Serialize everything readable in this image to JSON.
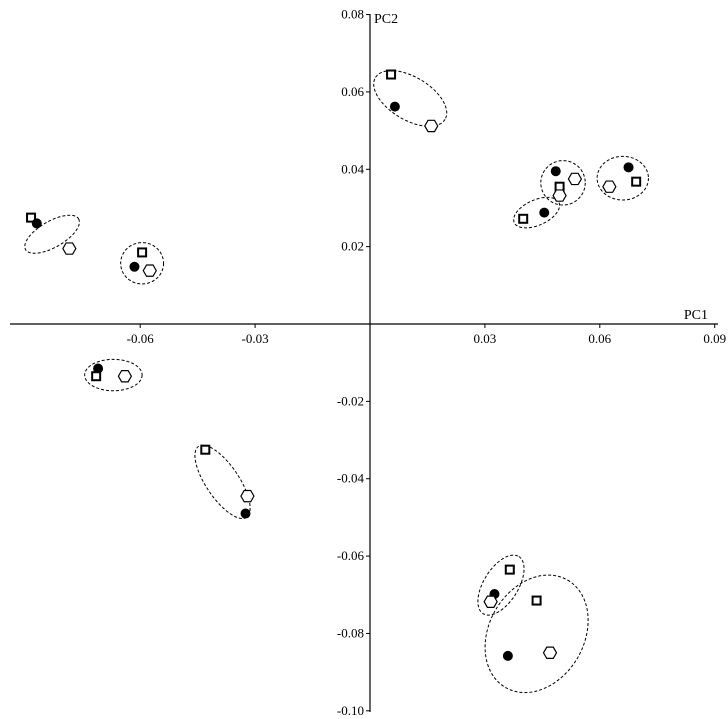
{
  "chart_data": {
    "type": "scatter",
    "title": "",
    "xlabel": "PC1",
    "ylabel": "PC2",
    "xlim": [
      -0.09,
      0.09
    ],
    "ylim": [
      -0.1,
      0.08
    ],
    "x_ticks": [
      {
        "value": -0.06,
        "label": "-0.06"
      },
      {
        "value": -0.03,
        "label": "-0.03"
      },
      {
        "value": 0.03,
        "label": "0.03"
      },
      {
        "value": 0.06,
        "label": "0.06"
      },
      {
        "value": 0.09,
        "label": "0.09"
      }
    ],
    "y_ticks": [
      {
        "value": 0.08,
        "label": "0.08"
      },
      {
        "value": 0.06,
        "label": "0.06"
      },
      {
        "value": 0.04,
        "label": "0.04"
      },
      {
        "value": 0.02,
        "label": "0.02"
      },
      {
        "value": -0.02,
        "label": "-0.02"
      },
      {
        "value": -0.04,
        "label": "-0.04"
      },
      {
        "value": -0.06,
        "label": "-0.06"
      },
      {
        "value": -0.08,
        "label": "-0.08"
      },
      {
        "value": -0.1,
        "label": "-0.10"
      }
    ],
    "grid": false,
    "legend": "none",
    "marker_styles": {
      "dot": {
        "shape": "filled-circle",
        "color": "#000000"
      },
      "square": {
        "shape": "open-square",
        "color": "#000000"
      },
      "hexagon": {
        "shape": "open-hexagon",
        "color": "#000000"
      }
    },
    "ellipse_style": {
      "stroke": "#000000",
      "dash": "dashed"
    },
    "groups": [
      {
        "id": "g1",
        "points": [
          {
            "marker": "square",
            "x": -0.0885,
            "y": 0.0275
          },
          {
            "marker": "dot",
            "x": -0.087,
            "y": 0.026
          },
          {
            "marker": "hexagon",
            "x": -0.0785,
            "y": 0.0195
          }
        ],
        "ellipse": {
          "cx": -0.083,
          "cy": 0.0232,
          "rx": 0.008,
          "ry": 0.0034,
          "angle_deg": -30
        }
      },
      {
        "id": "g2",
        "points": [
          {
            "marker": "square",
            "x": -0.0595,
            "y": 0.0185
          },
          {
            "marker": "dot",
            "x": -0.0615,
            "y": 0.0148
          },
          {
            "marker": "hexagon",
            "x": -0.0575,
            "y": 0.0138
          }
        ],
        "ellipse": {
          "cx": -0.0595,
          "cy": 0.0157,
          "rx": 0.0056,
          "ry": 0.0054,
          "angle_deg": 0
        }
      },
      {
        "id": "g3",
        "points": [
          {
            "marker": "square",
            "x": 0.0055,
            "y": 0.0645
          },
          {
            "marker": "dot",
            "x": 0.0065,
            "y": 0.0562
          },
          {
            "marker": "hexagon",
            "x": 0.016,
            "y": 0.0512
          }
        ],
        "ellipse": {
          "cx": 0.0105,
          "cy": 0.0583,
          "rx": 0.0106,
          "ry": 0.0056,
          "angle_deg": 31
        }
      },
      {
        "id": "g4",
        "points": [
          {
            "marker": "dot",
            "x": 0.0485,
            "y": 0.0395
          },
          {
            "marker": "square",
            "x": 0.0495,
            "y": 0.0355
          },
          {
            "marker": "hexagon",
            "x": 0.0495,
            "y": 0.0332
          },
          {
            "marker": "hexagon",
            "x": 0.0535,
            "y": 0.0375
          }
        ],
        "ellipse": {
          "cx": 0.0504,
          "cy": 0.0365,
          "rx": 0.0058,
          "ry": 0.0058,
          "angle_deg": 0
        }
      },
      {
        "id": "g5",
        "points": [
          {
            "marker": "square",
            "x": 0.04,
            "y": 0.0272
          },
          {
            "marker": "dot",
            "x": 0.0455,
            "y": 0.0288
          }
        ],
        "ellipse": {
          "cx": 0.0435,
          "cy": 0.0288,
          "rx": 0.0064,
          "ry": 0.0033,
          "angle_deg": -24
        }
      },
      {
        "id": "g6",
        "points": [
          {
            "marker": "dot",
            "x": 0.0675,
            "y": 0.0405
          },
          {
            "marker": "hexagon",
            "x": 0.0625,
            "y": 0.0355
          },
          {
            "marker": "square",
            "x": 0.0695,
            "y": 0.0368
          }
        ],
        "ellipse": {
          "cx": 0.066,
          "cy": 0.0377,
          "rx": 0.0067,
          "ry": 0.0057,
          "angle_deg": 0
        }
      },
      {
        "id": "g7",
        "points": [
          {
            "marker": "dot",
            "x": -0.071,
            "y": -0.0115
          },
          {
            "marker": "square",
            "x": -0.0715,
            "y": -0.0135
          },
          {
            "marker": "hexagon",
            "x": -0.064,
            "y": -0.0135
          }
        ],
        "ellipse": {
          "cx": -0.067,
          "cy": -0.0132,
          "rx": 0.0075,
          "ry": 0.0041,
          "angle_deg": 0
        }
      },
      {
        "id": "g8",
        "points": [
          {
            "marker": "square",
            "x": -0.043,
            "y": -0.0325
          },
          {
            "marker": "hexagon",
            "x": -0.032,
            "y": -0.0445
          },
          {
            "marker": "dot",
            "x": -0.0325,
            "y": -0.049
          }
        ],
        "ellipse": {
          "cx": -0.0385,
          "cy": -0.0408,
          "rx": 0.0112,
          "ry": 0.0043,
          "angle_deg": 56
        }
      },
      {
        "id": "g9",
        "points": [
          {
            "marker": "square",
            "x": 0.0365,
            "y": -0.0635
          },
          {
            "marker": "dot",
            "x": 0.0325,
            "y": -0.0698
          },
          {
            "marker": "hexagon",
            "x": 0.0315,
            "y": -0.0718
          }
        ],
        "ellipse": {
          "cx": 0.0342,
          "cy": -0.0675,
          "rx": 0.0088,
          "ry": 0.0045,
          "angle_deg": -58
        }
      },
      {
        "id": "g10",
        "points": [
          {
            "marker": "square",
            "x": 0.0435,
            "y": -0.0715
          },
          {
            "marker": "dot",
            "x": 0.036,
            "y": -0.0858
          },
          {
            "marker": "hexagon",
            "x": 0.047,
            "y": -0.085
          }
        ],
        "ellipse": {
          "cx": 0.0435,
          "cy": -0.0801,
          "rx": 0.0162,
          "ry": 0.0124,
          "angle_deg": -60
        }
      }
    ]
  }
}
